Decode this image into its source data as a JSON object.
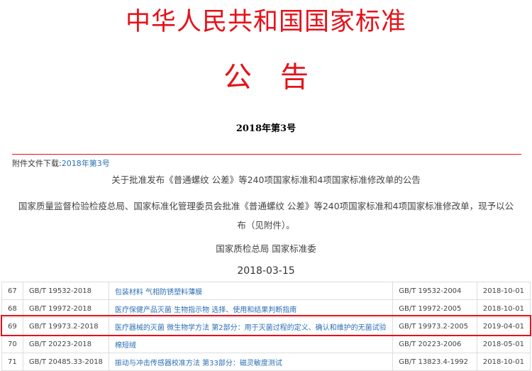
{
  "header": {
    "title": "中华人民共和国国家标准",
    "subtitle": "公告",
    "issue": "2018年第3号"
  },
  "attachment": {
    "label": "附件文件下载:",
    "link": "2018年第3号"
  },
  "notice": {
    "subject": "关于批准发布《普通螺纹 公差》等240项国家标准和4项国家标准修改单的公告",
    "body": "国家质量监督检验检疫总局、国家标准化管理委员会批准《普通螺纹 公差》等240项国家标准和4项国家标准修改单，现予以公布（见附件）。",
    "signature": "国家质检总局 国家标准委",
    "date": "2018-03-15"
  },
  "table": {
    "rows": [
      {
        "no": "67",
        "code": "GB/T 19532-2018",
        "name": "包装材料 气相防锈塑料薄膜",
        "replaces": "GB/T 19532-2004",
        "effective": "2018-10-01"
      },
      {
        "no": "68",
        "code": "GB/T 19972-2018",
        "name": "医疗保健产品灭菌 生物指示物 选择、使用和结果判断指南",
        "replaces": "GB/T 19972-2005",
        "effective": "2018-10-01"
      },
      {
        "no": "69",
        "code": "GB/T 19973.2-2018",
        "name": "医疗器械的灭菌 微生物学方法 第2部分：用于灭菌过程的定义、确认和维护的无菌试验",
        "replaces": "GB/T 19973.2-2005",
        "effective": "2019-04-01"
      },
      {
        "no": "70",
        "code": "GB/T 20223-2018",
        "name": "棉短绒",
        "replaces": "GB/T 20223-2006",
        "effective": "2018-05-01"
      },
      {
        "no": "71",
        "code": "GB/T 20485.33-2018",
        "name": "振动与冲击传感器校准方法 第33部分：磁灵敏度测试",
        "replaces": "GB/T 13823.4-1992",
        "effective": "2018-10-01"
      }
    ],
    "highlighted_row": "69"
  },
  "colors": {
    "accent": "#e5121a",
    "link": "#2a6fb5"
  }
}
